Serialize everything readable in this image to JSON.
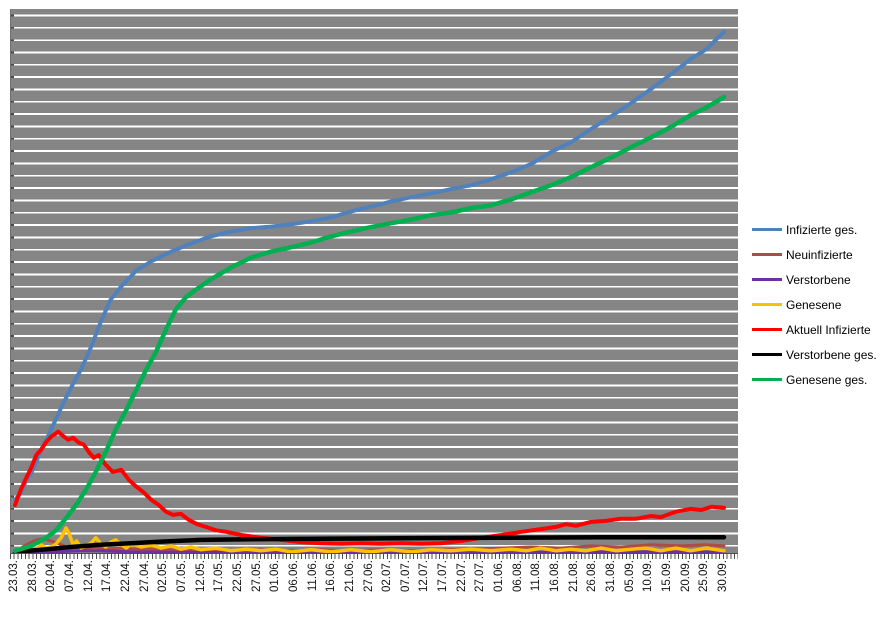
{
  "chart_data": {
    "type": "line",
    "title": "",
    "xlabel": "",
    "ylabel": "",
    "y_axis": {
      "labels_visible": false,
      "ylim": [
        0,
        100
      ],
      "units": "percent of plot height (no y-axis value labels are visible in the image)",
      "gridlines": "horizontal white gridlines every ~2.3% on gray plot background"
    },
    "x_tick_labels": [
      "23.03.",
      "28.03.",
      "02.04.",
      "07.04.",
      "12.04.",
      "17.04.",
      "22.04.",
      "27.04.",
      "02.05.",
      "07.05.",
      "12.05.",
      "17.05.",
      "22.05.",
      "27.05.",
      "01.06.",
      "06.06.",
      "11.06.",
      "16.06.",
      "21.06.",
      "27.06.",
      "02.07.",
      "07.07.",
      "12.07.",
      "17.07.",
      "22.07.",
      "27.07.",
      "01.06.",
      "06.08.",
      "11.08.",
      "16.08.",
      "21.08.",
      "26.08.",
      "31.08.",
      "05.09.",
      "10.09.",
      "15.09.",
      "20.09.",
      "25.09.",
      "30.09."
    ],
    "x_axis_note": "dense daily minor ticks (5 per labelled interval), labels rotated 90deg reading bottom-to-top",
    "colors": {
      "plot_background": "#858585",
      "gridline": "#ffffff",
      "axis": "#4d4d4d",
      "page_background": "#ffffff"
    },
    "legend": {
      "position": "right"
    },
    "series": [
      {
        "name": "Infizierte ges.",
        "color": "#4F81BD",
        "width": 4,
        "points": [
          [
            0,
            9.8
          ],
          [
            0.008,
            11.0
          ],
          [
            0.016,
            13.4
          ],
          [
            0.023,
            14.7
          ],
          [
            0.03,
            16.8
          ],
          [
            0.037,
            19.0
          ],
          [
            0.044,
            20.8
          ],
          [
            0.051,
            22.7
          ],
          [
            0.065,
            26.7
          ],
          [
            0.079,
            30.4
          ],
          [
            0.093,
            33.7
          ],
          [
            0.107,
            37.8
          ],
          [
            0.121,
            42.5
          ],
          [
            0.135,
            46.6
          ],
          [
            0.15,
            49.0
          ],
          [
            0.171,
            51.9
          ],
          [
            0.192,
            53.6
          ],
          [
            0.22,
            55.4
          ],
          [
            0.248,
            56.9
          ],
          [
            0.276,
            58.2
          ],
          [
            0.305,
            59.1
          ],
          [
            0.333,
            59.7
          ],
          [
            0.361,
            60.0
          ],
          [
            0.389,
            60.4
          ],
          [
            0.418,
            61.0
          ],
          [
            0.446,
            61.7
          ],
          [
            0.474,
            62.8
          ],
          [
            0.502,
            63.7
          ],
          [
            0.53,
            64.6
          ],
          [
            0.559,
            65.4
          ],
          [
            0.587,
            66.1
          ],
          [
            0.615,
            66.9
          ],
          [
            0.643,
            67.6
          ],
          [
            0.671,
            68.7
          ],
          [
            0.7,
            70.0
          ],
          [
            0.728,
            71.5
          ],
          [
            0.756,
            73.7
          ],
          [
            0.784,
            75.5
          ],
          [
            0.812,
            77.9
          ],
          [
            0.841,
            80.3
          ],
          [
            0.869,
            82.7
          ],
          [
            0.897,
            85.3
          ],
          [
            0.925,
            88.0
          ],
          [
            0.953,
            90.8
          ],
          [
            0.975,
            92.6
          ],
          [
            1,
            95.8
          ]
        ]
      },
      {
        "name": "Neuinfizierte",
        "color": "#AF4B44",
        "width": 3,
        "points": [
          [
            0,
            0.2
          ],
          [
            0.008,
            0.9
          ],
          [
            0.02,
            1.8
          ],
          [
            0.03,
            2.4
          ],
          [
            0.04,
            2.6
          ],
          [
            0.051,
            2.2
          ],
          [
            0.062,
            1.7
          ],
          [
            0.072,
            1.1
          ],
          [
            0.086,
            1.3
          ],
          [
            0.1,
            0.9
          ],
          [
            0.114,
            1.1
          ],
          [
            0.128,
            0.7
          ],
          [
            0.15,
            0.9
          ],
          [
            0.178,
            0.6
          ],
          [
            0.206,
            0.7
          ],
          [
            0.234,
            0.4
          ],
          [
            0.262,
            0.6
          ],
          [
            0.305,
            0.4
          ],
          [
            0.347,
            0.6
          ],
          [
            0.389,
            0.4
          ],
          [
            0.432,
            0.6
          ],
          [
            0.474,
            0.4
          ],
          [
            0.516,
            0.6
          ],
          [
            0.559,
            0.4
          ],
          [
            0.601,
            0.6
          ],
          [
            0.643,
            0.7
          ],
          [
            0.686,
            0.9
          ],
          [
            0.728,
            1.1
          ],
          [
            0.77,
            0.9
          ],
          [
            0.812,
            1.3
          ],
          [
            0.855,
            1.1
          ],
          [
            0.897,
            1.5
          ],
          [
            0.939,
            1.3
          ],
          [
            0.975,
            1.5
          ],
          [
            1,
            1.3
          ]
        ]
      },
      {
        "name": "Verstorbene",
        "color": "#7030A0",
        "width": 3,
        "points": [
          [
            0,
            0.1
          ],
          [
            0.051,
            0.2
          ],
          [
            0.093,
            0.4
          ],
          [
            0.121,
            0.4
          ],
          [
            0.164,
            0.2
          ],
          [
            0.262,
            0.1
          ],
          [
            0.403,
            0.1
          ],
          [
            0.544,
            0.1
          ],
          [
            0.686,
            0.1
          ],
          [
            0.827,
            0.2
          ],
          [
            0.968,
            0.2
          ],
          [
            1,
            0.1
          ]
        ]
      },
      {
        "name": "Genesene",
        "color": "#FFC000",
        "width": 3.5,
        "points": [
          [
            0,
            0.4
          ],
          [
            0.008,
            0.9
          ],
          [
            0.016,
            0.6
          ],
          [
            0.023,
            1.3
          ],
          [
            0.03,
            0.7
          ],
          [
            0.037,
            1.5
          ],
          [
            0.044,
            0.9
          ],
          [
            0.051,
            1.1
          ],
          [
            0.058,
            1.7
          ],
          [
            0.065,
            2.8
          ],
          [
            0.072,
            4.6
          ],
          [
            0.076,
            3.7
          ],
          [
            0.082,
            1.5
          ],
          [
            0.087,
            2.2
          ],
          [
            0.093,
            0.9
          ],
          [
            0.1,
            1.3
          ],
          [
            0.107,
            1.8
          ],
          [
            0.114,
            2.8
          ],
          [
            0.121,
            1.7
          ],
          [
            0.128,
            1.1
          ],
          [
            0.135,
            2.0
          ],
          [
            0.142,
            2.4
          ],
          [
            0.15,
            1.5
          ],
          [
            0.157,
            0.9
          ],
          [
            0.164,
            1.7
          ],
          [
            0.178,
            1.1
          ],
          [
            0.192,
            1.5
          ],
          [
            0.206,
            0.9
          ],
          [
            0.22,
            1.3
          ],
          [
            0.234,
            0.7
          ],
          [
            0.248,
            1.1
          ],
          [
            0.262,
            0.6
          ],
          [
            0.283,
            0.9
          ],
          [
            0.305,
            0.4
          ],
          [
            0.326,
            0.7
          ],
          [
            0.347,
            0.4
          ],
          [
            0.368,
            0.7
          ],
          [
            0.389,
            0.2
          ],
          [
            0.418,
            0.6
          ],
          [
            0.446,
            0.2
          ],
          [
            0.474,
            0.6
          ],
          [
            0.502,
            0.2
          ],
          [
            0.53,
            0.6
          ],
          [
            0.559,
            0.2
          ],
          [
            0.587,
            0.6
          ],
          [
            0.615,
            0.4
          ],
          [
            0.643,
            0.7
          ],
          [
            0.671,
            0.4
          ],
          [
            0.7,
            0.7
          ],
          [
            0.721,
            0.4
          ],
          [
            0.742,
            0.9
          ],
          [
            0.763,
            0.4
          ],
          [
            0.784,
            0.7
          ],
          [
            0.805,
            0.4
          ],
          [
            0.827,
            0.9
          ],
          [
            0.848,
            0.4
          ],
          [
            0.869,
            0.7
          ],
          [
            0.89,
            0.9
          ],
          [
            0.911,
            0.4
          ],
          [
            0.932,
            0.9
          ],
          [
            0.953,
            0.4
          ],
          [
            0.975,
            0.9
          ],
          [
            0.989,
            0.6
          ],
          [
            1,
            0.4
          ]
        ]
      },
      {
        "name": "Aktuell Infizierte",
        "color": "#FF0000",
        "width": 4,
        "points": [
          [
            0,
            8.8
          ],
          [
            0.008,
            11.6
          ],
          [
            0.016,
            13.8
          ],
          [
            0.023,
            15.7
          ],
          [
            0.03,
            18.0
          ],
          [
            0.037,
            19.0
          ],
          [
            0.044,
            20.4
          ],
          [
            0.051,
            21.4
          ],
          [
            0.061,
            22.3
          ],
          [
            0.068,
            21.5
          ],
          [
            0.075,
            20.8
          ],
          [
            0.082,
            21.2
          ],
          [
            0.09,
            20.3
          ],
          [
            0.097,
            19.9
          ],
          [
            0.104,
            18.6
          ],
          [
            0.111,
            17.5
          ],
          [
            0.118,
            18.0
          ],
          [
            0.128,
            16.2
          ],
          [
            0.138,
            14.9
          ],
          [
            0.15,
            15.3
          ],
          [
            0.161,
            13.4
          ],
          [
            0.171,
            12.2
          ],
          [
            0.181,
            11.2
          ],
          [
            0.192,
            9.8
          ],
          [
            0.203,
            8.8
          ],
          [
            0.213,
            7.6
          ],
          [
            0.223,
            7.0
          ],
          [
            0.234,
            7.2
          ],
          [
            0.245,
            6.1
          ],
          [
            0.257,
            5.3
          ],
          [
            0.269,
            4.8
          ],
          [
            0.283,
            4.2
          ],
          [
            0.298,
            3.9
          ],
          [
            0.319,
            3.3
          ],
          [
            0.347,
            2.8
          ],
          [
            0.375,
            2.4
          ],
          [
            0.403,
            2.0
          ],
          [
            0.432,
            1.8
          ],
          [
            0.46,
            1.7
          ],
          [
            0.488,
            1.8
          ],
          [
            0.516,
            1.7
          ],
          [
            0.544,
            1.8
          ],
          [
            0.573,
            1.7
          ],
          [
            0.601,
            1.8
          ],
          [
            0.629,
            2.2
          ],
          [
            0.657,
            2.8
          ],
          [
            0.686,
            3.3
          ],
          [
            0.714,
            3.9
          ],
          [
            0.742,
            4.4
          ],
          [
            0.763,
            4.8
          ],
          [
            0.777,
            5.3
          ],
          [
            0.791,
            5.0
          ],
          [
            0.812,
            5.7
          ],
          [
            0.833,
            5.9
          ],
          [
            0.855,
            6.3
          ],
          [
            0.876,
            6.3
          ],
          [
            0.897,
            6.8
          ],
          [
            0.911,
            6.6
          ],
          [
            0.932,
            7.6
          ],
          [
            0.953,
            8.1
          ],
          [
            0.968,
            7.9
          ],
          [
            0.982,
            8.5
          ],
          [
            1,
            8.3
          ]
        ]
      },
      {
        "name": "Verstorbene ges.",
        "color": "#000000",
        "width": 4.5,
        "points": [
          [
            0,
            0.2
          ],
          [
            0.037,
            0.6
          ],
          [
            0.079,
            1.1
          ],
          [
            0.121,
            1.5
          ],
          [
            0.164,
            1.8
          ],
          [
            0.206,
            2.1
          ],
          [
            0.262,
            2.4
          ],
          [
            0.319,
            2.5
          ],
          [
            0.403,
            2.6
          ],
          [
            0.544,
            2.7
          ],
          [
            0.686,
            2.8
          ],
          [
            0.827,
            2.9
          ],
          [
            0.968,
            2.9
          ],
          [
            1,
            2.9
          ]
        ]
      },
      {
        "name": "Genesene ges.",
        "color": "#00B050",
        "width": 4.5,
        "points": [
          [
            0,
            0.4
          ],
          [
            0.023,
            1.3
          ],
          [
            0.044,
            2.8
          ],
          [
            0.058,
            4.2
          ],
          [
            0.072,
            6.4
          ],
          [
            0.086,
            8.8
          ],
          [
            0.1,
            11.6
          ],
          [
            0.114,
            14.9
          ],
          [
            0.128,
            18.6
          ],
          [
            0.142,
            22.7
          ],
          [
            0.157,
            26.3
          ],
          [
            0.171,
            30.0
          ],
          [
            0.185,
            33.7
          ],
          [
            0.199,
            37.0
          ],
          [
            0.213,
            41.1
          ],
          [
            0.227,
            44.8
          ],
          [
            0.241,
            47.0
          ],
          [
            0.255,
            48.4
          ],
          [
            0.276,
            50.3
          ],
          [
            0.305,
            52.5
          ],
          [
            0.333,
            54.3
          ],
          [
            0.361,
            55.4
          ],
          [
            0.389,
            56.2
          ],
          [
            0.418,
            57.1
          ],
          [
            0.446,
            58.2
          ],
          [
            0.474,
            59.1
          ],
          [
            0.502,
            59.9
          ],
          [
            0.53,
            60.6
          ],
          [
            0.559,
            61.3
          ],
          [
            0.587,
            62.1
          ],
          [
            0.615,
            62.6
          ],
          [
            0.643,
            63.4
          ],
          [
            0.671,
            63.9
          ],
          [
            0.7,
            65.0
          ],
          [
            0.728,
            66.3
          ],
          [
            0.756,
            67.6
          ],
          [
            0.784,
            69.1
          ],
          [
            0.812,
            70.9
          ],
          [
            0.841,
            72.7
          ],
          [
            0.869,
            74.6
          ],
          [
            0.897,
            76.4
          ],
          [
            0.925,
            78.3
          ],
          [
            0.953,
            80.5
          ],
          [
            0.975,
            81.9
          ],
          [
            1,
            83.8
          ]
        ]
      }
    ]
  }
}
